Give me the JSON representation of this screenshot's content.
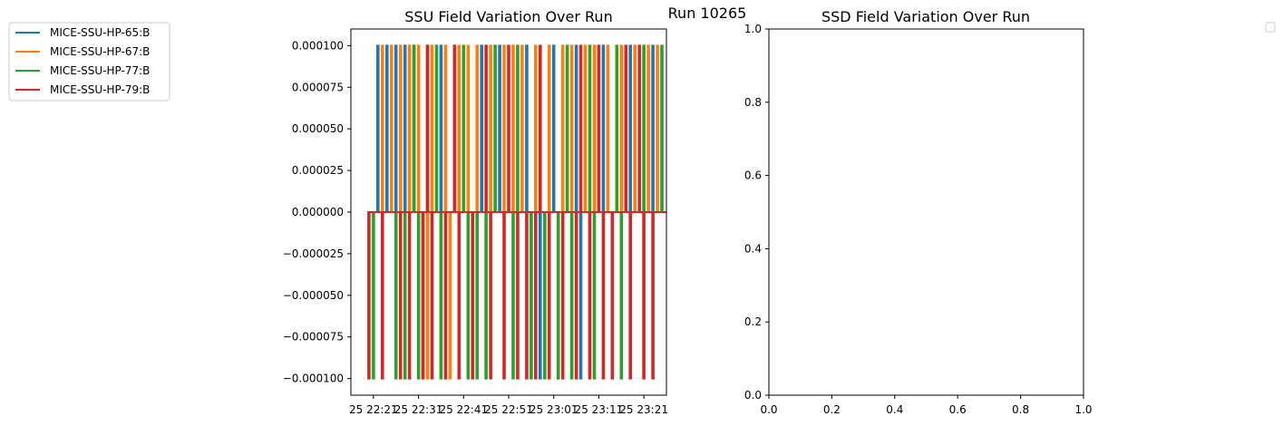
{
  "suptitle": "Run 10265",
  "chart_data": [
    {
      "type": "line",
      "title": "SSU Field Variation Over Run",
      "xlabel": "",
      "ylabel": "",
      "x_ticks": [
        {
          "value": "22:21",
          "label": "25 22:21"
        },
        {
          "value": "22:31",
          "label": "25 22:31"
        },
        {
          "value": "22:41",
          "label": "25 22:41"
        },
        {
          "value": "22:51",
          "label": "25 22:51"
        },
        {
          "value": "23:01",
          "label": "25 23:01"
        },
        {
          "value": "23:11",
          "label": "25 23:11"
        },
        {
          "value": "23:21",
          "label": "25 23:21"
        }
      ],
      "xlim": [
        "22:16",
        "23:26"
      ],
      "ylim": [
        -0.00011,
        0.00011
      ],
      "y_ticks": [
        {
          "value": 0.0001,
          "label": "0.000100"
        },
        {
          "value": 7.5e-05,
          "label": "0.000075"
        },
        {
          "value": 5e-05,
          "label": "0.000050"
        },
        {
          "value": 2.5e-05,
          "label": "0.000025"
        },
        {
          "value": 0,
          "label": "0.000000"
        },
        {
          "value": -2.5e-05,
          "label": "−0.000025"
        },
        {
          "value": -5e-05,
          "label": "−0.000050"
        },
        {
          "value": -7.5e-05,
          "label": "−0.000075"
        },
        {
          "value": -0.0001,
          "label": "−0.000100"
        }
      ],
      "grid": false,
      "legend_placement": "outside-left",
      "series": [
        {
          "name": "MICE-SSU-HP-65:B",
          "color": "#1f77b4",
          "spikes": [
            {
              "t": "22:22",
              "v": 0.0001
            },
            {
              "t": "22:22",
              "v": 0.0001
            },
            {
              "t": "22:24",
              "v": 0.0001
            },
            {
              "t": "22:26",
              "v": 0.0001
            },
            {
              "t": "22:28",
              "v": 0.0001
            },
            {
              "t": "22:30",
              "v": 0.0001
            },
            {
              "t": "22:33",
              "v": 0.0001
            },
            {
              "t": "22:36",
              "v": 0.0001
            },
            {
              "t": "22:39",
              "v": 0.0001
            },
            {
              "t": "22:45",
              "v": 0.0001
            },
            {
              "t": "22:49",
              "v": 0.0001
            },
            {
              "t": "22:55",
              "v": 0.0001
            },
            {
              "t": "23:01",
              "v": 0.0001
            },
            {
              "t": "23:06",
              "v": 0.0001
            },
            {
              "t": "23:12",
              "v": 0.0001
            },
            {
              "t": "23:18",
              "v": 0.0001
            },
            {
              "t": "23:23",
              "v": 0.0001
            },
            {
              "t": "22:58",
              "v": -0.0001
            },
            {
              "t": "23:07",
              "v": -0.0001
            },
            {
              "t": "23:14",
              "v": -0.0001
            }
          ]
        },
        {
          "name": "MICE-SSU-HP-67:B",
          "color": "#ff7f0e",
          "spikes": [
            {
              "t": "22:23",
              "v": 0.0001
            },
            {
              "t": "22:25",
              "v": 0.0001
            },
            {
              "t": "22:27",
              "v": 0.0001
            },
            {
              "t": "22:29",
              "v": 0.0001
            },
            {
              "t": "22:31",
              "v": 0.0001
            },
            {
              "t": "22:34",
              "v": 0.0001
            },
            {
              "t": "22:37",
              "v": 0.0001
            },
            {
              "t": "22:40",
              "v": 0.0001
            },
            {
              "t": "22:42",
              "v": 0.0001
            },
            {
              "t": "22:44",
              "v": 0.0001
            },
            {
              "t": "22:47",
              "v": 0.0001
            },
            {
              "t": "22:50",
              "v": 0.0001
            },
            {
              "t": "22:52",
              "v": 0.0001
            },
            {
              "t": "22:54",
              "v": 0.0001
            },
            {
              "t": "22:57",
              "v": 0.0001
            },
            {
              "t": "23:00",
              "v": 0.0001
            },
            {
              "t": "23:03",
              "v": 0.0001
            },
            {
              "t": "23:05",
              "v": 0.0001
            },
            {
              "t": "23:08",
              "v": 0.0001
            },
            {
              "t": "23:10",
              "v": 0.0001
            },
            {
              "t": "23:13",
              "v": 0.0001
            },
            {
              "t": "23:16",
              "v": 0.0001
            },
            {
              "t": "23:19",
              "v": 0.0001
            },
            {
              "t": "23:22",
              "v": 0.0001
            },
            {
              "t": "23:24",
              "v": 0.0001
            },
            {
              "t": "22:33",
              "v": -0.0001
            },
            {
              "t": "22:38",
              "v": -0.0001
            },
            {
              "t": "23:02",
              "v": -0.0001
            }
          ]
        },
        {
          "name": "MICE-SSU-HP-77:B",
          "color": "#2ca02c",
          "spikes": [
            {
              "t": "22:30",
              "v": 0.0001
            },
            {
              "t": "22:35",
              "v": 0.0001
            },
            {
              "t": "22:41",
              "v": 0.0001
            },
            {
              "t": "22:48",
              "v": 0.0001
            },
            {
              "t": "22:53",
              "v": 0.0001
            },
            {
              "t": "23:04",
              "v": 0.0001
            },
            {
              "t": "23:09",
              "v": 0.0001
            },
            {
              "t": "23:15",
              "v": 0.0001
            },
            {
              "t": "23:21",
              "v": 0.0001
            },
            {
              "t": "23:25",
              "v": 0.0001
            },
            {
              "t": "22:21",
              "v": -0.0001
            },
            {
              "t": "22:26",
              "v": -0.0001
            },
            {
              "t": "22:28",
              "v": -0.0001
            },
            {
              "t": "22:31",
              "v": -0.0001
            },
            {
              "t": "22:32",
              "v": -0.0001
            },
            {
              "t": "22:36",
              "v": -0.0001
            },
            {
              "t": "22:42",
              "v": -0.0001
            },
            {
              "t": "22:44",
              "v": -0.0001
            },
            {
              "t": "22:46",
              "v": -0.0001
            },
            {
              "t": "22:52",
              "v": -0.0001
            },
            {
              "t": "22:56",
              "v": -0.0001
            },
            {
              "t": "22:59",
              "v": -0.0001
            },
            {
              "t": "23:02",
              "v": -0.0001
            },
            {
              "t": "23:05",
              "v": -0.0001
            },
            {
              "t": "23:10",
              "v": -0.0001
            },
            {
              "t": "23:16",
              "v": -0.0001
            }
          ]
        },
        {
          "name": "MICE-SSU-HP-79:B",
          "color": "#d62728",
          "spikes": [
            {
              "t": "22:33",
              "v": 0.0001
            },
            {
              "t": "22:39",
              "v": 0.0001
            },
            {
              "t": "22:46",
              "v": 0.0001
            },
            {
              "t": "22:51",
              "v": 0.0001
            },
            {
              "t": "22:58",
              "v": 0.0001
            },
            {
              "t": "23:07",
              "v": 0.0001
            },
            {
              "t": "23:11",
              "v": 0.0001
            },
            {
              "t": "23:17",
              "v": 0.0001
            },
            {
              "t": "23:20",
              "v": 0.0001
            },
            {
              "t": "22:20",
              "v": -0.0001
            },
            {
              "t": "22:23",
              "v": -0.0001
            },
            {
              "t": "22:27",
              "v": -0.0001
            },
            {
              "t": "22:29",
              "v": -0.0001
            },
            {
              "t": "22:32",
              "v": -0.0001
            },
            {
              "t": "22:34",
              "v": -0.0001
            },
            {
              "t": "22:37",
              "v": -0.0001
            },
            {
              "t": "22:40",
              "v": -0.0001
            },
            {
              "t": "22:43",
              "v": -0.0001
            },
            {
              "t": "22:47",
              "v": -0.0001
            },
            {
              "t": "22:50",
              "v": -0.0001
            },
            {
              "t": "22:53",
              "v": -0.0001
            },
            {
              "t": "22:55",
              "v": -0.0001
            },
            {
              "t": "22:57",
              "v": -0.0001
            },
            {
              "t": "23:00",
              "v": -0.0001
            },
            {
              "t": "23:03",
              "v": -0.0001
            },
            {
              "t": "23:06",
              "v": -0.0001
            },
            {
              "t": "23:09",
              "v": -0.0001
            },
            {
              "t": "23:12",
              "v": -0.0001
            },
            {
              "t": "23:14",
              "v": -0.0001
            },
            {
              "t": "23:18",
              "v": -0.0001
            },
            {
              "t": "23:21",
              "v": -0.0001
            },
            {
              "t": "23:23",
              "v": -0.0001
            }
          ]
        }
      ]
    },
    {
      "type": "line",
      "title": "SSD Field Variation Over Run",
      "xlabel": "",
      "ylabel": "",
      "xlim": [
        0,
        1
      ],
      "ylim": [
        0,
        1
      ],
      "x_ticks": [
        {
          "value": 0,
          "label": "0.0"
        },
        {
          "value": 0.2,
          "label": "0.2"
        },
        {
          "value": 0.4,
          "label": "0.4"
        },
        {
          "value": 0.6,
          "label": "0.6"
        },
        {
          "value": 0.8,
          "label": "0.8"
        },
        {
          "value": 1,
          "label": "1.0"
        }
      ],
      "y_ticks": [
        {
          "value": 0,
          "label": "0.0"
        },
        {
          "value": 0.2,
          "label": "0.2"
        },
        {
          "value": 0.4,
          "label": "0.4"
        },
        {
          "value": 0.6,
          "label": "0.6"
        },
        {
          "value": 0.8,
          "label": "0.8"
        },
        {
          "value": 1,
          "label": "1.0"
        }
      ],
      "grid": false,
      "legend_placement": "outside-right",
      "series": []
    }
  ]
}
